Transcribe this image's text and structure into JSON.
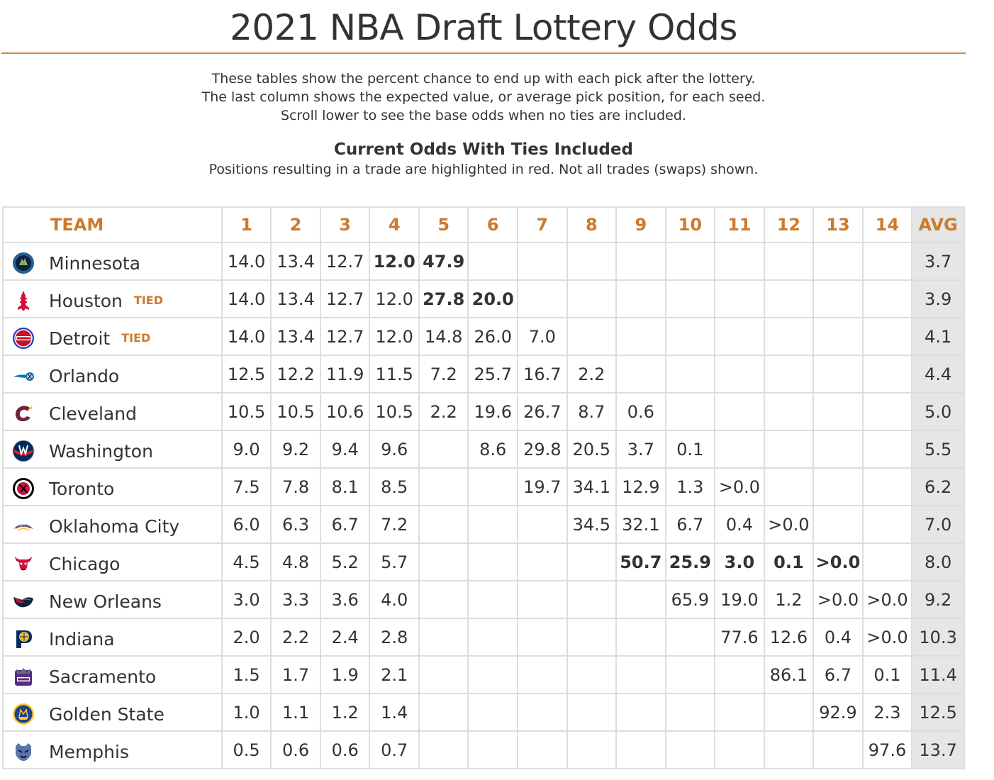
{
  "page": {
    "title": "2021 NBA Draft Lottery Odds",
    "intro": [
      "These tables show the percent chance to end up with each pick after the lottery.",
      "The last column shows the expected value, or average pick position, for each seed.",
      "Scroll lower to see the base odds when no ties are included."
    ],
    "section_title": "Current Odds With Ties Included",
    "section_note": "Positions resulting in a trade are highlighted in red. Not all trades (swaps) shown."
  },
  "colors": {
    "accent": "#cc7a2e",
    "rule": "#cc8a45",
    "trade": "#d42a2a",
    "avg_bg": "#e6e6e6",
    "grid": "#dddddd"
  },
  "table": {
    "headers": [
      "TEAM",
      "1",
      "2",
      "3",
      "4",
      "5",
      "6",
      "7",
      "8",
      "9",
      "10",
      "11",
      "12",
      "13",
      "14",
      "AVG"
    ],
    "rows": [
      {
        "team": "Minnesota",
        "logo": "timberwolves-logo",
        "tied": "",
        "avg": "3.7",
        "picks": [
          {
            "v": "14.0"
          },
          {
            "v": "13.4"
          },
          {
            "v": "12.7"
          },
          {
            "v": "12.0",
            "trade": true
          },
          {
            "v": "47.9",
            "trade": true
          },
          {
            "v": ""
          },
          {
            "v": ""
          },
          {
            "v": ""
          },
          {
            "v": ""
          },
          {
            "v": ""
          },
          {
            "v": ""
          },
          {
            "v": ""
          },
          {
            "v": ""
          },
          {
            "v": ""
          }
        ]
      },
      {
        "team": "Houston",
        "logo": "rockets-logo",
        "tied": "TIED",
        "avg": "3.9",
        "picks": [
          {
            "v": "14.0"
          },
          {
            "v": "13.4"
          },
          {
            "v": "12.7"
          },
          {
            "v": "12.0"
          },
          {
            "v": "27.8",
            "trade": true
          },
          {
            "v": "20.0",
            "trade": true
          },
          {
            "v": ""
          },
          {
            "v": ""
          },
          {
            "v": ""
          },
          {
            "v": ""
          },
          {
            "v": ""
          },
          {
            "v": ""
          },
          {
            "v": ""
          },
          {
            "v": ""
          }
        ]
      },
      {
        "team": "Detroit",
        "logo": "pistons-logo",
        "tied": "TIED",
        "avg": "4.1",
        "picks": [
          {
            "v": "14.0"
          },
          {
            "v": "13.4"
          },
          {
            "v": "12.7"
          },
          {
            "v": "12.0"
          },
          {
            "v": "14.8"
          },
          {
            "v": "26.0"
          },
          {
            "v": "7.0"
          },
          {
            "v": ""
          },
          {
            "v": ""
          },
          {
            "v": ""
          },
          {
            "v": ""
          },
          {
            "v": ""
          },
          {
            "v": ""
          },
          {
            "v": ""
          }
        ]
      },
      {
        "team": "Orlando",
        "logo": "magic-logo",
        "tied": "",
        "avg": "4.4",
        "picks": [
          {
            "v": "12.5"
          },
          {
            "v": "12.2"
          },
          {
            "v": "11.9"
          },
          {
            "v": "11.5"
          },
          {
            "v": "7.2"
          },
          {
            "v": "25.7"
          },
          {
            "v": "16.7"
          },
          {
            "v": "2.2"
          },
          {
            "v": ""
          },
          {
            "v": ""
          },
          {
            "v": ""
          },
          {
            "v": ""
          },
          {
            "v": ""
          },
          {
            "v": ""
          }
        ]
      },
      {
        "team": "Cleveland",
        "logo": "cavaliers-logo",
        "tied": "",
        "avg": "5.0",
        "picks": [
          {
            "v": "10.5"
          },
          {
            "v": "10.5"
          },
          {
            "v": "10.6"
          },
          {
            "v": "10.5"
          },
          {
            "v": "2.2"
          },
          {
            "v": "19.6"
          },
          {
            "v": "26.7"
          },
          {
            "v": "8.7"
          },
          {
            "v": "0.6"
          },
          {
            "v": ""
          },
          {
            "v": ""
          },
          {
            "v": ""
          },
          {
            "v": ""
          },
          {
            "v": ""
          }
        ]
      },
      {
        "team": "Washington",
        "logo": "wizards-logo",
        "tied": "",
        "avg": "5.5",
        "picks": [
          {
            "v": "9.0"
          },
          {
            "v": "9.2"
          },
          {
            "v": "9.4"
          },
          {
            "v": "9.6"
          },
          {
            "v": ""
          },
          {
            "v": "8.6"
          },
          {
            "v": "29.8"
          },
          {
            "v": "20.5"
          },
          {
            "v": "3.7"
          },
          {
            "v": "0.1"
          },
          {
            "v": ""
          },
          {
            "v": ""
          },
          {
            "v": ""
          },
          {
            "v": ""
          }
        ]
      },
      {
        "team": "Toronto",
        "logo": "raptors-logo",
        "tied": "",
        "avg": "6.2",
        "picks": [
          {
            "v": "7.5"
          },
          {
            "v": "7.8"
          },
          {
            "v": "8.1"
          },
          {
            "v": "8.5"
          },
          {
            "v": ""
          },
          {
            "v": ""
          },
          {
            "v": "19.7"
          },
          {
            "v": "34.1"
          },
          {
            "v": "12.9"
          },
          {
            "v": "1.3"
          },
          {
            "v": ">0.0"
          },
          {
            "v": ""
          },
          {
            "v": ""
          },
          {
            "v": ""
          }
        ]
      },
      {
        "team": "Oklahoma City",
        "logo": "thunder-logo",
        "tied": "",
        "avg": "7.0",
        "picks": [
          {
            "v": "6.0"
          },
          {
            "v": "6.3"
          },
          {
            "v": "6.7"
          },
          {
            "v": "7.2"
          },
          {
            "v": ""
          },
          {
            "v": ""
          },
          {
            "v": ""
          },
          {
            "v": "34.5"
          },
          {
            "v": "32.1"
          },
          {
            "v": "6.7"
          },
          {
            "v": "0.4"
          },
          {
            "v": ">0.0"
          },
          {
            "v": ""
          },
          {
            "v": ""
          }
        ]
      },
      {
        "team": "Chicago",
        "logo": "bulls-logo",
        "tied": "",
        "avg": "8.0",
        "picks": [
          {
            "v": "4.5"
          },
          {
            "v": "4.8"
          },
          {
            "v": "5.2"
          },
          {
            "v": "5.7"
          },
          {
            "v": ""
          },
          {
            "v": ""
          },
          {
            "v": ""
          },
          {
            "v": ""
          },
          {
            "v": "50.7",
            "trade": true
          },
          {
            "v": "25.9",
            "trade": true
          },
          {
            "v": "3.0",
            "trade": true
          },
          {
            "v": "0.1",
            "trade": true
          },
          {
            "v": ">0.0",
            "trade": true
          },
          {
            "v": ""
          }
        ]
      },
      {
        "team": "New Orleans",
        "logo": "pelicans-logo",
        "tied": "",
        "avg": "9.2",
        "picks": [
          {
            "v": "3.0"
          },
          {
            "v": "3.3"
          },
          {
            "v": "3.6"
          },
          {
            "v": "4.0"
          },
          {
            "v": ""
          },
          {
            "v": ""
          },
          {
            "v": ""
          },
          {
            "v": ""
          },
          {
            "v": ""
          },
          {
            "v": "65.9"
          },
          {
            "v": "19.0"
          },
          {
            "v": "1.2"
          },
          {
            "v": ">0.0"
          },
          {
            "v": ">0.0"
          }
        ]
      },
      {
        "team": "Indiana",
        "logo": "pacers-logo",
        "tied": "",
        "avg": "10.3",
        "picks": [
          {
            "v": "2.0"
          },
          {
            "v": "2.2"
          },
          {
            "v": "2.4"
          },
          {
            "v": "2.8"
          },
          {
            "v": ""
          },
          {
            "v": ""
          },
          {
            "v": ""
          },
          {
            "v": ""
          },
          {
            "v": ""
          },
          {
            "v": ""
          },
          {
            "v": "77.6"
          },
          {
            "v": "12.6"
          },
          {
            "v": "0.4"
          },
          {
            "v": ">0.0"
          }
        ]
      },
      {
        "team": "Sacramento",
        "logo": "kings-logo",
        "tied": "",
        "avg": "11.4",
        "picks": [
          {
            "v": "1.5"
          },
          {
            "v": "1.7"
          },
          {
            "v": "1.9"
          },
          {
            "v": "2.1"
          },
          {
            "v": ""
          },
          {
            "v": ""
          },
          {
            "v": ""
          },
          {
            "v": ""
          },
          {
            "v": ""
          },
          {
            "v": ""
          },
          {
            "v": ""
          },
          {
            "v": "86.1"
          },
          {
            "v": "6.7"
          },
          {
            "v": "0.1"
          }
        ]
      },
      {
        "team": "Golden State",
        "logo": "warriors-logo",
        "tied": "",
        "avg": "12.5",
        "picks": [
          {
            "v": "1.0"
          },
          {
            "v": "1.1"
          },
          {
            "v": "1.2"
          },
          {
            "v": "1.4"
          },
          {
            "v": ""
          },
          {
            "v": ""
          },
          {
            "v": ""
          },
          {
            "v": ""
          },
          {
            "v": ""
          },
          {
            "v": ""
          },
          {
            "v": ""
          },
          {
            "v": ""
          },
          {
            "v": "92.9"
          },
          {
            "v": "2.3"
          }
        ]
      },
      {
        "team": "Memphis",
        "logo": "grizzlies-logo",
        "tied": "",
        "avg": "13.7",
        "picks": [
          {
            "v": "0.5"
          },
          {
            "v": "0.6"
          },
          {
            "v": "0.6"
          },
          {
            "v": "0.7"
          },
          {
            "v": ""
          },
          {
            "v": ""
          },
          {
            "v": ""
          },
          {
            "v": ""
          },
          {
            "v": ""
          },
          {
            "v": ""
          },
          {
            "v": ""
          },
          {
            "v": ""
          },
          {
            "v": ""
          },
          {
            "v": "97.6"
          }
        ]
      }
    ]
  }
}
